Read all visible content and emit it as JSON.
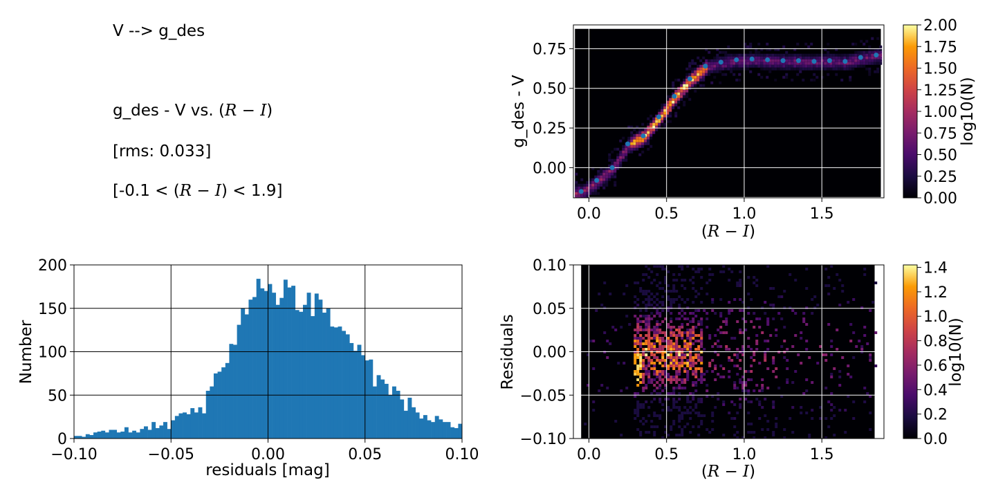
{
  "text_panel": {
    "line1": "V --> g_des",
    "line2_pre": "g_des - V vs. (",
    "line2_math": "R − I",
    "line2_post": ")",
    "line3": "[rms: 0.033]",
    "line4_pre": "[-0.1 < (",
    "line4_math": "R − I",
    "line4_post": ") < 1.9]"
  },
  "chart_data": [
    {
      "id": "color-relation",
      "type": "heatmap",
      "xlabel": "(R − I)",
      "ylabel": "g_des - V",
      "xlim": [
        -0.1,
        1.9
      ],
      "ylim": [
        -0.19,
        0.9
      ],
      "xticks": [
        0.0,
        0.5,
        1.0,
        1.5
      ],
      "xtick_labels": [
        "0.0",
        "0.5",
        "1.0",
        "1.5"
      ],
      "yticks": [
        0.0,
        0.25,
        0.5,
        0.75
      ],
      "ytick_labels": [
        "0.00",
        "0.25",
        "0.50",
        "0.75"
      ],
      "grid": true,
      "colormap": "inferno",
      "colorbar": {
        "label": "log10(N)",
        "range": [
          0.0,
          2.0
        ],
        "ticks": [
          0.0,
          0.25,
          0.5,
          0.75,
          1.0,
          1.25,
          1.5,
          1.75,
          2.0
        ],
        "tick_labels": [
          "0.00",
          "0.25",
          "0.50",
          "0.75",
          "1.00",
          "1.25",
          "1.50",
          "1.75",
          "2.00"
        ]
      },
      "binned_means": {
        "color": "#1f77b4",
        "x": [
          -0.05,
          0.05,
          0.15,
          0.25,
          0.35,
          0.45,
          0.55,
          0.65,
          0.75,
          0.85,
          0.95,
          1.05,
          1.15,
          1.25,
          1.35,
          1.45,
          1.55,
          1.65,
          1.75,
          1.85
        ],
        "y": [
          -0.15,
          -0.08,
          0.0,
          0.15,
          0.2,
          0.32,
          0.45,
          0.56,
          0.64,
          0.665,
          0.68,
          0.685,
          0.68,
          0.675,
          0.675,
          0.67,
          0.675,
          0.67,
          0.695,
          0.71
        ]
      }
    },
    {
      "id": "residual-histogram",
      "type": "bar",
      "xlabel": "residuals [mag]",
      "ylabel": "Number",
      "xlim": [
        -0.1,
        0.1
      ],
      "ylim": [
        0,
        200
      ],
      "xticks": [
        -0.1,
        -0.05,
        0.0,
        0.05,
        0.1
      ],
      "xtick_labels": [
        "−0.10",
        "−0.05",
        "0.00",
        "0.05",
        "0.10"
      ],
      "yticks": [
        0,
        50,
        100,
        150,
        200
      ],
      "ytick_labels": [
        "0",
        "50",
        "100",
        "150",
        "200"
      ],
      "grid": true,
      "bar_color": "#1f77b4",
      "bin_width": 0.002,
      "bin_start": -0.1,
      "values": [
        3,
        3,
        2,
        5,
        4,
        7,
        8,
        9,
        7,
        10,
        10,
        7,
        8,
        13,
        7,
        9,
        7,
        11,
        14,
        10,
        19,
        12,
        15,
        19,
        11,
        21,
        26,
        29,
        30,
        28,
        35,
        30,
        36,
        29,
        55,
        60,
        75,
        77,
        82,
        87,
        109,
        108,
        131,
        150,
        143,
        160,
        163,
        184,
        173,
        170,
        178,
        168,
        154,
        162,
        183,
        174,
        176,
        148,
        146,
        154,
        168,
        141,
        167,
        160,
        145,
        150,
        129,
        128,
        129,
        124,
        120,
        110,
        101,
        108,
        96,
        90,
        91,
        60,
        73,
        68,
        63,
        50,
        60,
        55,
        45,
        32,
        47,
        36,
        30,
        23,
        27,
        21,
        19,
        26,
        22,
        19,
        19,
        13,
        12,
        17
      ]
    },
    {
      "id": "residual-map",
      "type": "heatmap",
      "xlabel": "(R − I)",
      "ylabel": "Residuals",
      "xlim": [
        -0.1,
        1.9
      ],
      "ylim": [
        -0.1,
        0.1
      ],
      "xticks": [
        0.0,
        0.5,
        1.0,
        1.5
      ],
      "xtick_labels": [
        "0.0",
        "0.5",
        "1.0",
        "1.5"
      ],
      "yticks": [
        -0.1,
        -0.05,
        0.0,
        0.05,
        0.1
      ],
      "ytick_labels": [
        "−0.10",
        "−0.05",
        "0.00",
        "0.05",
        "0.10"
      ],
      "grid": true,
      "colormap": "inferno",
      "colorbar": {
        "label": "log10(N)",
        "range": [
          0.0,
          1.42
        ],
        "ticks": [
          0.0,
          0.2,
          0.4,
          0.6,
          0.8,
          1.0,
          1.2,
          1.4
        ],
        "tick_labels": [
          "0.0",
          "0.2",
          "0.4",
          "0.6",
          "0.8",
          "1.0",
          "1.2",
          "1.4"
        ]
      }
    }
  ]
}
